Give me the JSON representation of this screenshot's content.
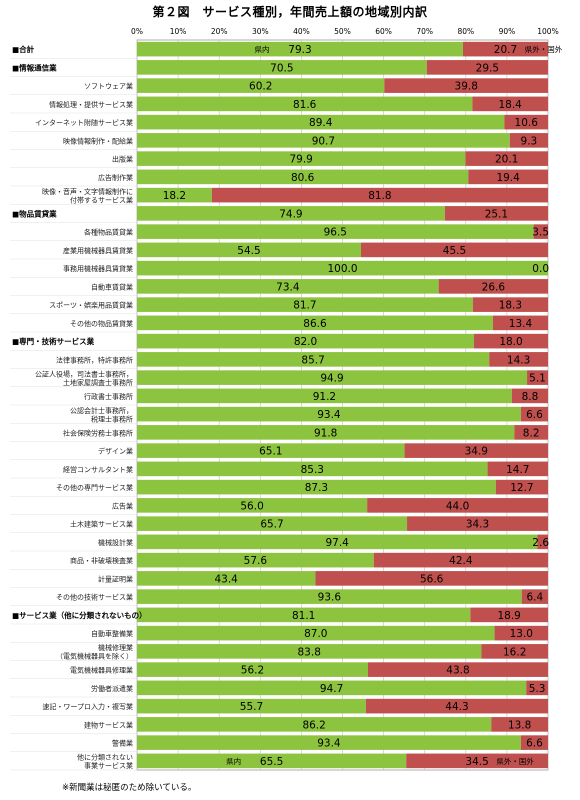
{
  "title": "第２図　サービス種別，年間売上額の地域別内訳",
  "footnote": "※新聞業は秘匿のため除いている。",
  "chart_data": {
    "type": "bar",
    "orientation": "horizontal",
    "stacked": true,
    "xlim": [
      0,
      100
    ],
    "x_ticks": [
      "0%",
      "10%",
      "20%",
      "30%",
      "40%",
      "50%",
      "60%",
      "70%",
      "80%",
      "90%",
      "100%"
    ],
    "grid": true,
    "series": [
      {
        "name": "県内",
        "color": "#8dc43f"
      },
      {
        "name": "県外・国外",
        "color": "#c0504d"
      }
    ],
    "inline_series_labels": {
      "first": "県内",
      "second": "県外・国外"
    },
    "categories": [
      {
        "label": [
          "■合計"
        ],
        "bold": true,
        "values": [
          79.3,
          20.7
        ],
        "show_series_labels": true
      },
      {
        "label": [
          "■情報通信業"
        ],
        "bold": true,
        "values": [
          70.5,
          29.5
        ]
      },
      {
        "label": [
          "ソフトウェア業"
        ],
        "values": [
          60.2,
          39.8
        ]
      },
      {
        "label": [
          "情報処理・提供サービス業"
        ],
        "values": [
          81.6,
          18.4
        ]
      },
      {
        "label": [
          "インターネット附随サービス業"
        ],
        "values": [
          89.4,
          10.6
        ]
      },
      {
        "label": [
          "映像情報制作・配給業"
        ],
        "values": [
          90.7,
          9.3
        ]
      },
      {
        "label": [
          "出版業"
        ],
        "values": [
          79.9,
          20.1
        ]
      },
      {
        "label": [
          "広告制作業"
        ],
        "values": [
          80.6,
          19.4
        ]
      },
      {
        "label": [
          "映像・音声・文字情報制作に",
          "付帯するサービス業"
        ],
        "values": [
          18.2,
          81.8
        ]
      },
      {
        "label": [
          "■物品賃貸業"
        ],
        "bold": true,
        "values": [
          74.9,
          25.1
        ]
      },
      {
        "label": [
          "各種物品賃貸業"
        ],
        "values": [
          96.5,
          3.5
        ]
      },
      {
        "label": [
          "産業用機械器具賃貸業"
        ],
        "values": [
          54.5,
          45.5
        ]
      },
      {
        "label": [
          "事務用機械器具賃貸業"
        ],
        "values": [
          100.0,
          0.0
        ]
      },
      {
        "label": [
          "自動車賃貸業"
        ],
        "values": [
          73.4,
          26.6
        ]
      },
      {
        "label": [
          "スポーツ・娯楽用品賃貸業"
        ],
        "values": [
          81.7,
          18.3
        ]
      },
      {
        "label": [
          "その他の物品賃貸業"
        ],
        "values": [
          86.6,
          13.4
        ]
      },
      {
        "label": [
          "■専門・技術サービス業"
        ],
        "bold": true,
        "values": [
          82.0,
          18.0
        ]
      },
      {
        "label": [
          "法律事務所，特許事務所"
        ],
        "values": [
          85.7,
          14.3
        ]
      },
      {
        "label": [
          "公証人役場，司法書士事務所，",
          "土地家屋調査士事務所"
        ],
        "values": [
          94.9,
          5.1
        ]
      },
      {
        "label": [
          "行政書士事務所"
        ],
        "values": [
          91.2,
          8.8
        ]
      },
      {
        "label": [
          "公認会計士事務所，",
          "税理士事務所"
        ],
        "values": [
          93.4,
          6.6
        ]
      },
      {
        "label": [
          "社会保険労務士事務所"
        ],
        "values": [
          91.8,
          8.2
        ]
      },
      {
        "label": [
          "デザイン業"
        ],
        "values": [
          65.1,
          34.9
        ]
      },
      {
        "label": [
          "経営コンサルタント業"
        ],
        "values": [
          85.3,
          14.7
        ]
      },
      {
        "label": [
          "その他の専門サービス業"
        ],
        "values": [
          87.3,
          12.7
        ]
      },
      {
        "label": [
          "広告業"
        ],
        "values": [
          56.0,
          44.0
        ]
      },
      {
        "label": [
          "土木建築サービス業"
        ],
        "values": [
          65.7,
          34.3
        ]
      },
      {
        "label": [
          "機械設計業"
        ],
        "values": [
          97.4,
          2.6
        ]
      },
      {
        "label": [
          "商品・非破壊検査業"
        ],
        "values": [
          57.6,
          42.4
        ]
      },
      {
        "label": [
          "計量証明業"
        ],
        "values": [
          43.4,
          56.6
        ]
      },
      {
        "label": [
          "その他の技術サービス業"
        ],
        "values": [
          93.6,
          6.4
        ]
      },
      {
        "label": [
          "■サービス業（他に分類されないもの）"
        ],
        "bold": true,
        "values": [
          81.1,
          18.9
        ]
      },
      {
        "label": [
          "自動車整備業"
        ],
        "values": [
          87.0,
          13.0
        ]
      },
      {
        "label": [
          "機械修理業",
          "（電気機械器具を除く）"
        ],
        "values": [
          83.8,
          16.2
        ]
      },
      {
        "label": [
          "電気機械器具修理業"
        ],
        "values": [
          56.2,
          43.8
        ]
      },
      {
        "label": [
          "労働者派遣業"
        ],
        "values": [
          94.7,
          5.3
        ]
      },
      {
        "label": [
          "速記・ワープロ入力・複写業"
        ],
        "values": [
          55.7,
          44.3
        ]
      },
      {
        "label": [
          "建物サービス業"
        ],
        "values": [
          86.2,
          13.8
        ]
      },
      {
        "label": [
          "警備業"
        ],
        "values": [
          93.4,
          6.6
        ]
      },
      {
        "label": [
          "他に分類されない",
          "事業サービス業"
        ],
        "values": [
          65.5,
          34.5
        ],
        "show_series_labels": true
      }
    ]
  }
}
